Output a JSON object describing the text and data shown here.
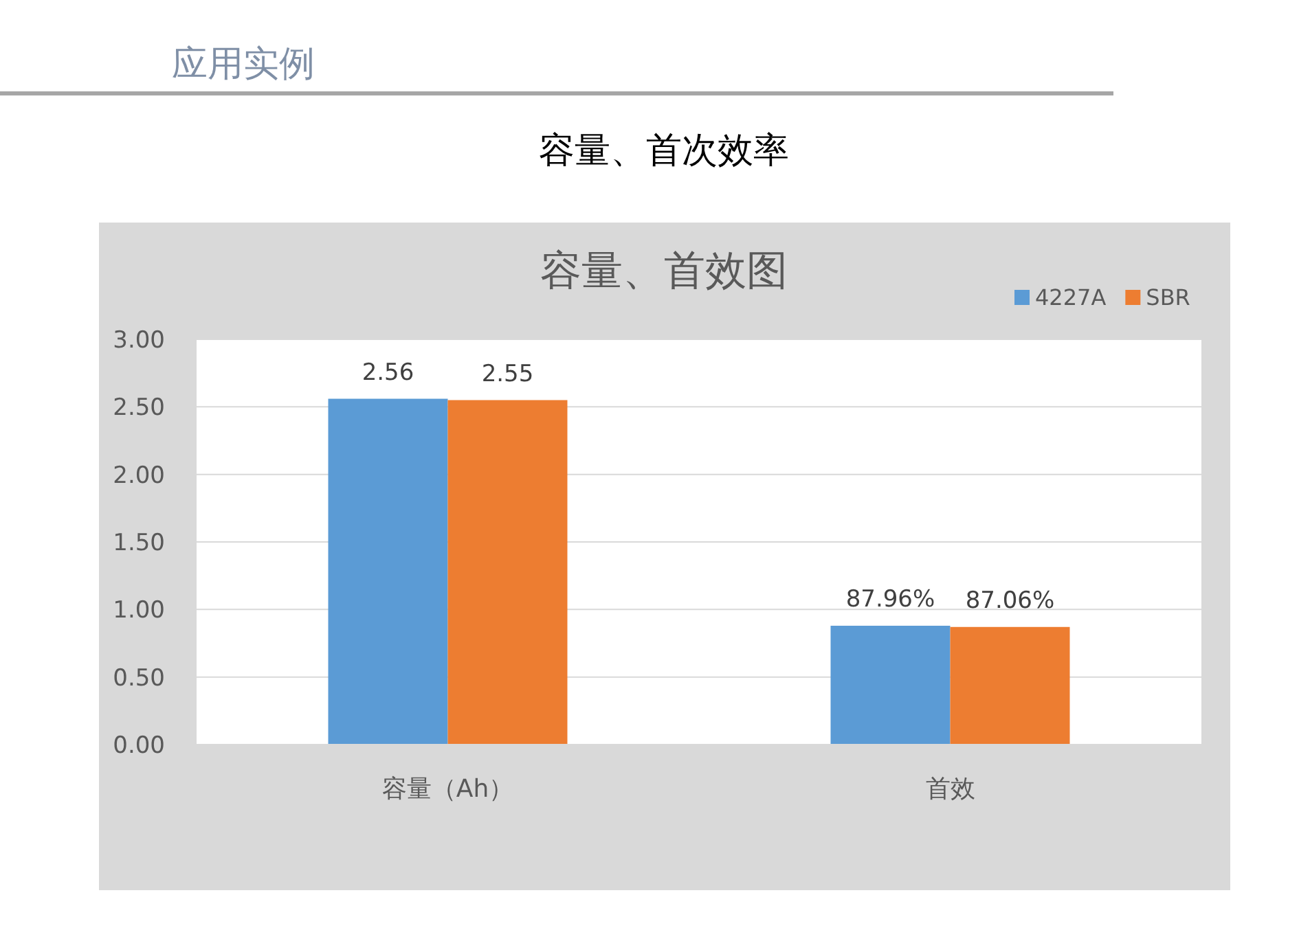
{
  "chart_data": {
    "type": "bar",
    "title": "容量、首效图",
    "categories": [
      "容量（Ah）",
      "首效"
    ],
    "series": [
      {
        "name": "4227A",
        "color": "#5b9bd5",
        "values": [
          2.56,
          0.8796
        ],
        "value_labels": [
          "2.56",
          "87.96%"
        ]
      },
      {
        "name": "SBR",
        "color": "#ed7d31",
        "values": [
          2.55,
          0.8706
        ],
        "value_labels": [
          "2.55",
          "87.06%"
        ]
      }
    ],
    "ylim": [
      0,
      3
    ],
    "yticks": [
      {
        "value": 0,
        "label": "0.00"
      },
      {
        "value": 0.5,
        "label": "0.50"
      },
      {
        "value": 1,
        "label": "1.00"
      },
      {
        "value": 1.5,
        "label": "1.50"
      },
      {
        "value": 2,
        "label": "2.00"
      },
      {
        "value": 2.5,
        "label": "2.50"
      },
      {
        "value": 3,
        "label": "3.00"
      }
    ],
    "grid": "y",
    "legend": "top right",
    "annotations": [
      "应用实例",
      "容量、首次效率"
    ]
  }
}
